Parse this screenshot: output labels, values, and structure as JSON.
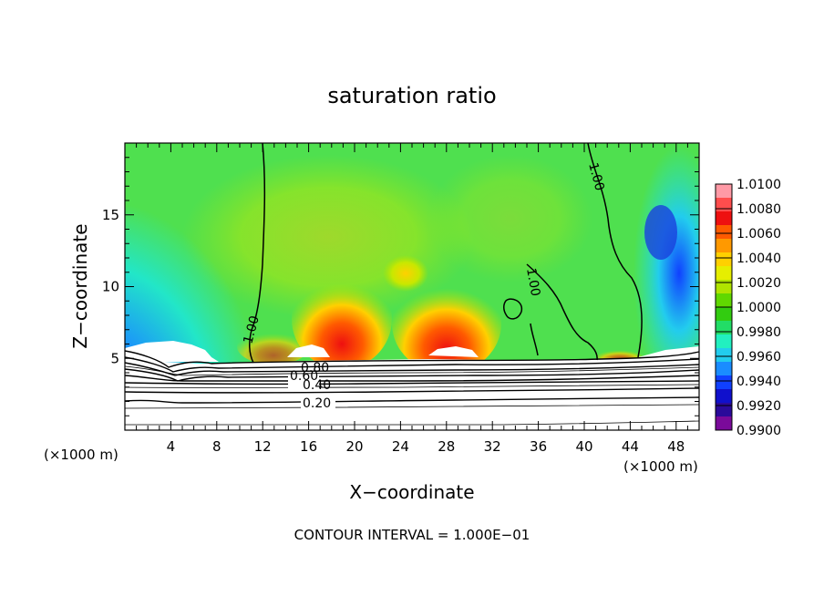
{
  "chart_data": {
    "type": "heatmap",
    "title": "saturation ratio",
    "xlabel": "X−coordinate",
    "ylabel": "Z−coordinate",
    "x_unit": "(×1000 m)",
    "x_unit_right": "(×1000 m)",
    "xlim": [
      0,
      50
    ],
    "ylim": [
      0,
      20
    ],
    "x_ticks": [
      4,
      8,
      12,
      16,
      20,
      24,
      28,
      32,
      36,
      40,
      44,
      48
    ],
    "y_ticks": [
      5,
      10,
      15
    ],
    "footer": "CONTOUR INTERVAL = 1.000E−01",
    "colorbar": {
      "labels": [
        "1.0100",
        "1.0080",
        "1.0060",
        "1.0040",
        "1.0020",
        "1.0000",
        "0.9980",
        "0.9960",
        "0.9940",
        "0.9920",
        "0.9900"
      ],
      "colors": [
        "#ff9aa6",
        "#ff4d4d",
        "#ee1010",
        "#ff5a00",
        "#ff9900",
        "#ffd000",
        "#e6ee00",
        "#b0e400",
        "#60d800",
        "#32cc10",
        "#22dd66",
        "#22f0c0",
        "#22ccee",
        "#1a8cff",
        "#1040ff",
        "#1010cc",
        "#2a0a9a",
        "#7a0a9a"
      ]
    },
    "contour_labels": [
      "1.00",
      "1.00",
      "1.00",
      "0.80",
      "0.60",
      "0.40",
      "0.20"
    ],
    "grid": false
  }
}
